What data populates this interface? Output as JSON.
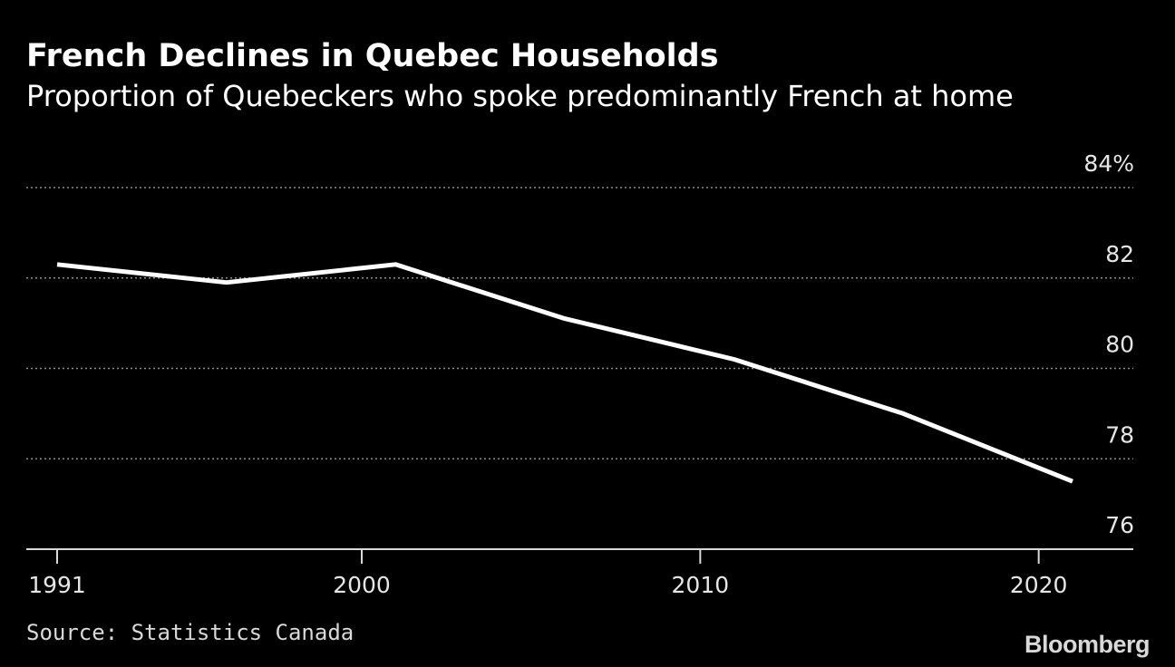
{
  "header": {
    "title": "French Declines in Quebec Households",
    "subtitle": "Proportion of Quebeckers who spoke predominantly French at home"
  },
  "footer": {
    "source": "Source: Statistics Canada",
    "brand": "Bloomberg"
  },
  "colors": {
    "background": "#000000",
    "line": "#ffffff",
    "grid": "#8c8c8c",
    "text": "#ffffff"
  },
  "chart_data": {
    "type": "line",
    "title": "French Declines in Quebec Households",
    "subtitle": "Proportion of Quebeckers who spoke predominantly French at home",
    "xlabel": "",
    "ylabel": "",
    "x": [
      1991,
      1996,
      2001,
      2006,
      2011,
      2016,
      2021
    ],
    "series": [
      {
        "name": "French spoken predominantly at home",
        "values": [
          82.3,
          81.9,
          82.3,
          81.1,
          80.2,
          79.0,
          77.5
        ]
      }
    ],
    "ylim": [
      76,
      84
    ],
    "xlim": [
      1991,
      2023
    ],
    "y_ticks": [
      76,
      78,
      80,
      82,
      84
    ],
    "y_tick_labels": [
      "76",
      "78",
      "80",
      "82",
      "84%"
    ],
    "x_ticks": [
      1991,
      2000,
      2010,
      2020
    ],
    "x_tick_labels": [
      "1991",
      "2000",
      "2010",
      "2020"
    ],
    "grid": true,
    "y_axis_side": "right",
    "legend": "none"
  }
}
